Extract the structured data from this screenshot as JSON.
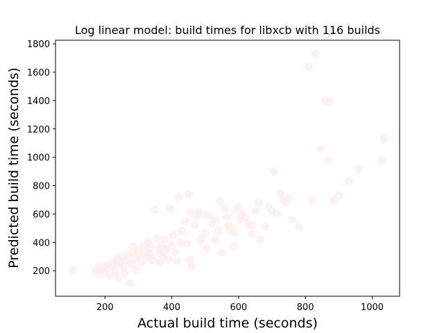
{
  "chart_data": {
    "type": "scatter",
    "title": "Log linear model: build times for libxcb with 116 builds",
    "xlabel": "Actual build time (seconds)",
    "ylabel": "Predicted build time (seconds)",
    "xlim": [
      52,
      1082
    ],
    "ylim": [
      20,
      1825
    ],
    "xticks": [
      200,
      400,
      600,
      800,
      1000
    ],
    "yticks": [
      200,
      400,
      600,
      800,
      1000,
      1200,
      1400,
      1600,
      1800
    ],
    "grid": false,
    "point_color": "#fbeeee",
    "point_opacity": 0.75,
    "points": [
      [
        105,
        205
      ],
      [
        170,
        190
      ],
      [
        180,
        225
      ],
      [
        185,
        175
      ],
      [
        195,
        215
      ],
      [
        200,
        195
      ],
      [
        205,
        240
      ],
      [
        215,
        165
      ],
      [
        220,
        230
      ],
      [
        225,
        260
      ],
      [
        230,
        200
      ],
      [
        235,
        285
      ],
      [
        240,
        150
      ],
      [
        245,
        250
      ],
      [
        250,
        300
      ],
      [
        255,
        220
      ],
      [
        260,
        180
      ],
      [
        265,
        270
      ],
      [
        270,
        310
      ],
      [
        275,
        110
      ],
      [
        280,
        240
      ],
      [
        285,
        330
      ],
      [
        290,
        280
      ],
      [
        295,
        210
      ],
      [
        300,
        350
      ],
      [
        305,
        300
      ],
      [
        310,
        260
      ],
      [
        315,
        380
      ],
      [
        320,
        330
      ],
      [
        325,
        290
      ],
      [
        330,
        400
      ],
      [
        335,
        360
      ],
      [
        340,
        310
      ],
      [
        345,
        270
      ],
      [
        350,
        630
      ],
      [
        355,
        430
      ],
      [
        360,
        350
      ],
      [
        365,
        320
      ],
      [
        370,
        380
      ],
      [
        375,
        300
      ],
      [
        380,
        420
      ],
      [
        385,
        350
      ],
      [
        390,
        280
      ],
      [
        395,
        640
      ],
      [
        400,
        380
      ],
      [
        405,
        450
      ],
      [
        410,
        330
      ],
      [
        415,
        270
      ],
      [
        420,
        720
      ],
      [
        425,
        400
      ],
      [
        430,
        480
      ],
      [
        440,
        550
      ],
      [
        445,
        390
      ],
      [
        450,
        740
      ],
      [
        455,
        610
      ],
      [
        460,
        230
      ],
      [
        470,
        520
      ],
      [
        475,
        590
      ],
      [
        480,
        620
      ],
      [
        485,
        410
      ],
      [
        490,
        430
      ],
      [
        495,
        600
      ],
      [
        500,
        470
      ],
      [
        505,
        360
      ],
      [
        510,
        590
      ],
      [
        520,
        530
      ],
      [
        530,
        560
      ],
      [
        540,
        480
      ],
      [
        545,
        690
      ],
      [
        550,
        330
      ],
      [
        560,
        640
      ],
      [
        565,
        580
      ],
      [
        570,
        520
      ],
      [
        575,
        480
      ],
      [
        580,
        500
      ],
      [
        585,
        370
      ],
      [
        590,
        620
      ],
      [
        600,
        650
      ],
      [
        605,
        560
      ],
      [
        610,
        600
      ],
      [
        620,
        580
      ],
      [
        630,
        530
      ],
      [
        640,
        520
      ],
      [
        650,
        620
      ],
      [
        660,
        680
      ],
      [
        680,
        510
      ],
      [
        690,
        650
      ],
      [
        700,
        620
      ],
      [
        705,
        900
      ],
      [
        715,
        600
      ],
      [
        725,
        740
      ],
      [
        735,
        700
      ],
      [
        740,
        680
      ],
      [
        750,
        710
      ],
      [
        780,
        510
      ],
      [
        810,
        1640
      ],
      [
        820,
        690
      ],
      [
        830,
        1730
      ],
      [
        845,
        1060
      ],
      [
        860,
        1400
      ],
      [
        870,
        980
      ],
      [
        875,
        1390
      ],
      [
        885,
        700
      ],
      [
        900,
        730
      ],
      [
        930,
        830
      ],
      [
        960,
        920
      ],
      [
        1030,
        980
      ],
      [
        1035,
        1130
      ],
      [
        760,
        560
      ],
      [
        665,
        420
      ],
      [
        530,
        420
      ],
      [
        455,
        280
      ],
      [
        365,
        260
      ],
      [
        285,
        370
      ],
      [
        640,
        460
      ],
      [
        590,
        470
      ]
    ]
  }
}
